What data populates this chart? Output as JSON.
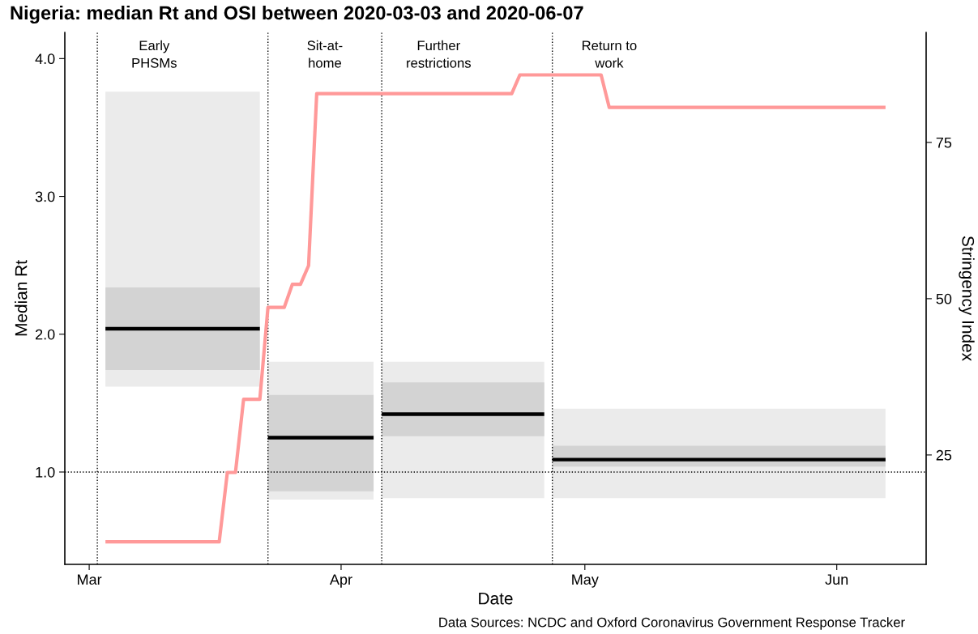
{
  "chart_data": {
    "type": "line",
    "title": "Nigeria: median Rt and OSI between 2020-03-03 and 2020-06-07",
    "xlabel": "Date",
    "ylabel": "Median Rt",
    "y2label": "Stringency Index",
    "xlim": [
      "2020-02-27",
      "2020-06-12"
    ],
    "xticks": [
      {
        "value": "2020-03-01",
        "label": "Mar"
      },
      {
        "value": "2020-04-01",
        "label": "Apr"
      },
      {
        "value": "2020-05-01",
        "label": "May"
      },
      {
        "value": "2020-06-01",
        "label": "Jun"
      }
    ],
    "ylim": [
      0.33,
      4.19
    ],
    "yticks": [
      {
        "value": 1,
        "label": "1.0"
      },
      {
        "value": 2,
        "label": "2.0"
      },
      {
        "value": 3,
        "label": "3.0"
      },
      {
        "value": 4,
        "label": "4.0"
      }
    ],
    "y2lim": [
      7.5,
      92.6
    ],
    "y2ticks": [
      25,
      50,
      75
    ],
    "series": [
      {
        "color": "#ebebeb",
        "x": [
          "2020-03-03",
          "2020-03-22"
        ],
        "values": [
          null,
          null
        ],
        "lower": [
          1.62,
          1.62
        ],
        "upper": [
          3.76,
          3.76
        ]
      },
      {
        "color": "#d3d3d3",
        "x": [
          "2020-03-03",
          "2020-03-22"
        ],
        "values": [
          null,
          null
        ],
        "lower": [
          1.74,
          1.74
        ],
        "upper": [
          2.34,
          2.34
        ]
      },
      {
        "color": "#000000",
        "x": [
          "2020-03-03",
          "2020-03-22"
        ],
        "values": [
          2.04,
          2.04
        ]
      },
      {
        "color": "#ebebeb",
        "x": [
          "2020-03-23",
          "2020-04-05"
        ],
        "values": [
          null,
          null
        ],
        "lower": [
          0.8,
          0.8
        ],
        "upper": [
          1.8,
          1.8
        ]
      },
      {
        "color": "#d3d3d3",
        "x": [
          "2020-03-23",
          "2020-04-05"
        ],
        "values": [
          null,
          null
        ],
        "lower": [
          0.86,
          0.86
        ],
        "upper": [
          1.56,
          1.56
        ]
      },
      {
        "color": "#000000",
        "x": [
          "2020-03-23",
          "2020-04-05"
        ],
        "values": [
          1.25,
          1.25
        ]
      },
      {
        "color": "#ebebeb",
        "x": [
          "2020-04-06",
          "2020-04-26"
        ],
        "values": [
          null,
          null
        ],
        "lower": [
          0.81,
          0.81
        ],
        "upper": [
          1.8,
          1.8
        ]
      },
      {
        "color": "#d3d3d3",
        "x": [
          "2020-04-06",
          "2020-04-26"
        ],
        "values": [
          null,
          null
        ],
        "lower": [
          1.26,
          1.26
        ],
        "upper": [
          1.65,
          1.65
        ]
      },
      {
        "color": "#000000",
        "x": [
          "2020-04-06",
          "2020-04-26"
        ],
        "values": [
          1.42,
          1.42
        ]
      },
      {
        "color": "#ebebeb",
        "x": [
          "2020-04-27",
          "2020-06-07"
        ],
        "values": [
          null,
          null
        ],
        "lower": [
          0.81,
          0.81
        ],
        "upper": [
          1.46,
          1.46
        ]
      },
      {
        "color": "#d3d3d3",
        "x": [
          "2020-04-27",
          "2020-06-07"
        ],
        "values": [
          null,
          null
        ],
        "lower": [
          1.04,
          1.04
        ],
        "upper": [
          1.19,
          1.19
        ]
      },
      {
        "color": "#000000",
        "x": [
          "2020-04-27",
          "2020-06-07"
        ],
        "values": [
          1.09,
          1.09
        ]
      },
      {
        "color": "#ff9999",
        "axis": "y2",
        "x": [
          "2020-03-03",
          "2020-03-17",
          "2020-03-18",
          "2020-03-19",
          "2020-03-20",
          "2020-03-22",
          "2020-03-23",
          "2020-03-25",
          "2020-03-26",
          "2020-03-27",
          "2020-03-28",
          "2020-03-29",
          "2020-04-22",
          "2020-04-23",
          "2020-05-03",
          "2020-05-04",
          "2020-06-07"
        ],
        "values": [
          11.1,
          11.1,
          22.2,
          22.2,
          33.9,
          33.9,
          48.6,
          48.6,
          52.3,
          52.3,
          55.3,
          82.8,
          82.8,
          85.8,
          85.8,
          80.6,
          80.6
        ]
      }
    ],
    "ref_lines": [
      {
        "axis": "x",
        "value": "2020-03-02",
        "label": "Early\nPHSMs",
        "line_style": "dotted"
      },
      {
        "axis": "x",
        "value": "2020-03-23",
        "label": "Sit-at-\nhome",
        "line_style": "dotted"
      },
      {
        "axis": "x",
        "value": "2020-04-06",
        "label": "Further\nrestrictions",
        "line_style": "dotted"
      },
      {
        "axis": "x",
        "value": "2020-04-27",
        "label": "Return to\nwork",
        "line_style": "dotted"
      },
      {
        "axis": "y",
        "value": 1.0,
        "label": null,
        "line_style": "dotted"
      }
    ],
    "annotations": [
      "Data Sources: NCDC and Oxford Coronavirus Government Response Tracker"
    ]
  }
}
